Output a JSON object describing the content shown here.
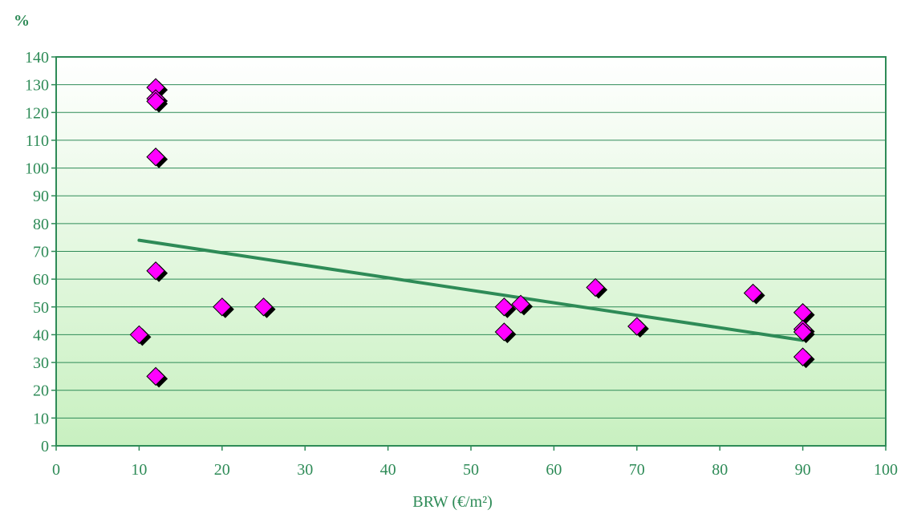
{
  "chart_data": {
    "type": "scatter",
    "title": "",
    "xlabel": "BRW (€/m²)",
    "ylabel": "%",
    "xlim": [
      0,
      100
    ],
    "ylim": [
      0,
      140
    ],
    "x_ticks": [
      0,
      10,
      20,
      30,
      40,
      50,
      60,
      70,
      80,
      90,
      100
    ],
    "y_ticks": [
      0,
      10,
      20,
      30,
      40,
      50,
      60,
      70,
      80,
      90,
      100,
      110,
      120,
      130,
      140
    ],
    "grid": "horizontal",
    "legend": "none",
    "colors": {
      "marker": "#ff00ff",
      "marker_shadow": "#000000",
      "trendline": "#2e8b57",
      "axis": "#2e8b57",
      "grid": "#2e8b57",
      "plot_bg_top": "#ffffff",
      "plot_bg_bottom": "#c8f0c0"
    },
    "points": [
      {
        "x": 12,
        "y": 129
      },
      {
        "x": 12,
        "y": 125
      },
      {
        "x": 12,
        "y": 124
      },
      {
        "x": 12,
        "y": 104
      },
      {
        "x": 12,
        "y": 63
      },
      {
        "x": 10,
        "y": 40
      },
      {
        "x": 12,
        "y": 25
      },
      {
        "x": 20,
        "y": 50
      },
      {
        "x": 25,
        "y": 50
      },
      {
        "x": 54,
        "y": 50
      },
      {
        "x": 54,
        "y": 41
      },
      {
        "x": 56,
        "y": 51
      },
      {
        "x": 65,
        "y": 57
      },
      {
        "x": 70,
        "y": 43
      },
      {
        "x": 84,
        "y": 55
      },
      {
        "x": 90,
        "y": 48
      },
      {
        "x": 90,
        "y": 42
      },
      {
        "x": 90,
        "y": 41
      },
      {
        "x": 90,
        "y": 32
      }
    ],
    "trendline": {
      "x": [
        10,
        90
      ],
      "y": [
        74,
        38
      ]
    }
  }
}
